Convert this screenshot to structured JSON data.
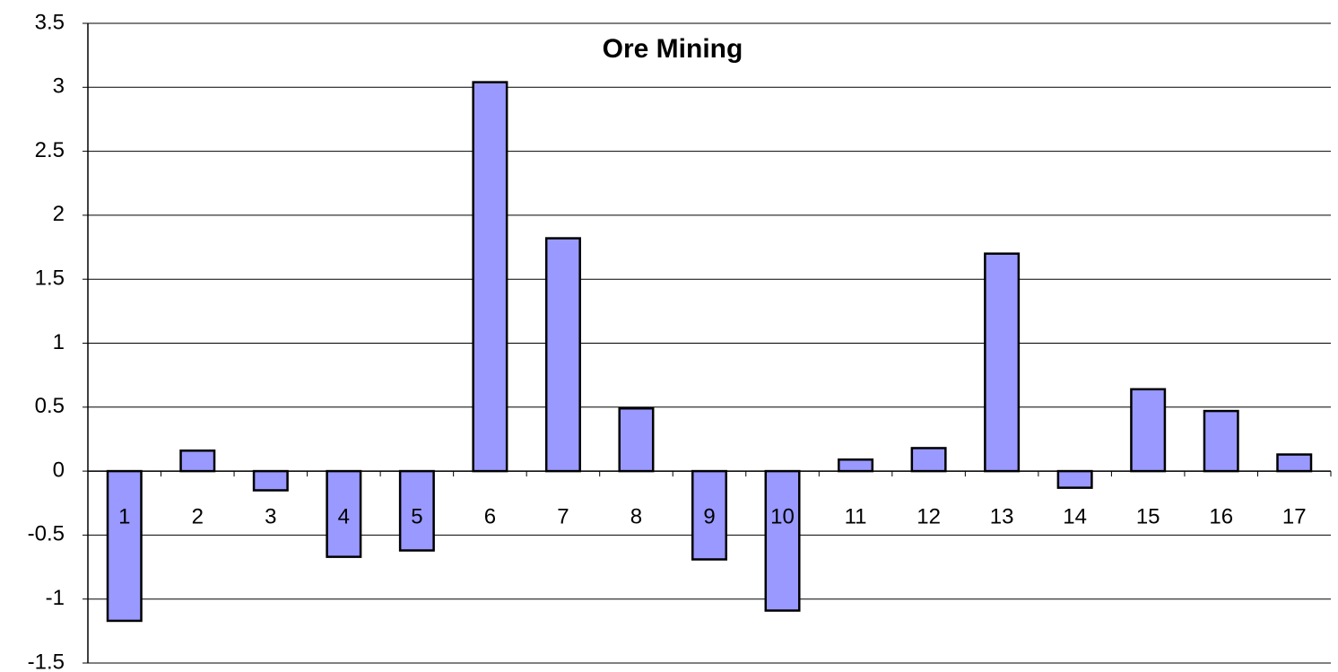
{
  "chart_data": {
    "type": "bar",
    "title": "Ore Mining",
    "categories": [
      "1",
      "2",
      "3",
      "4",
      "5",
      "6",
      "7",
      "8",
      "9",
      "10",
      "11",
      "12",
      "13",
      "14",
      "15",
      "16",
      "17"
    ],
    "values": [
      -1.17,
      0.16,
      -0.15,
      -0.67,
      -0.62,
      3.04,
      1.82,
      0.49,
      -0.69,
      -1.09,
      0.09,
      0.18,
      1.7,
      -0.13,
      0.64,
      0.47,
      0.13
    ],
    "color": "#9999ff",
    "ylim": [
      -1.5,
      3.5
    ],
    "yticks": [
      -1.5,
      -1,
      -0.5,
      0,
      0.5,
      1,
      1.5,
      2,
      2.5,
      3,
      3.5
    ],
    "grid": true
  }
}
